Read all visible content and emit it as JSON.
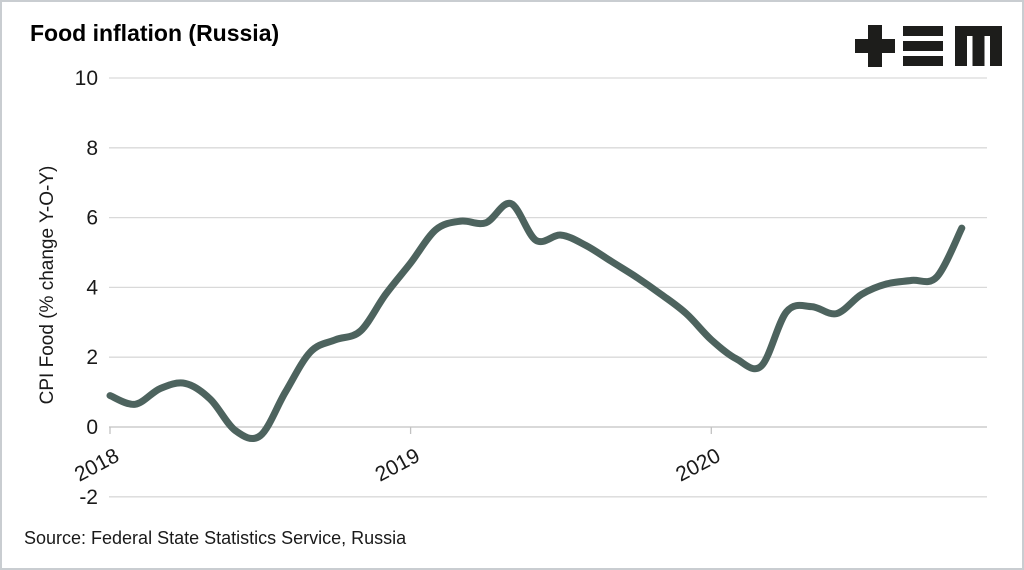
{
  "window": {
    "background_color": "#ffffff",
    "border_color": "#c9cdd1"
  },
  "header": {
    "title": "Food inflation (Russia)"
  },
  "logo": {
    "name": "tem-logo",
    "color": "#1d1d1b"
  },
  "footer": {
    "source_text": "Source: Federal State Statistics Service, Russia"
  },
  "chart_data": {
    "type": "line",
    "title": "Food inflation (Russia)",
    "xlabel": "",
    "ylabel": "CPI Food (% change Y-O-Y)",
    "ylim": [
      -2,
      10
    ],
    "ytick_interval": 2,
    "yticks": [
      10,
      8,
      6,
      4,
      2,
      0,
      -2
    ],
    "year_labels": [
      "2018",
      "2019",
      "2020"
    ],
    "grid": "horizontal",
    "legend": "none",
    "line_color": "#4d635e",
    "gridline_color": "#d9d9d9",
    "axis_color": "#c2c2c2",
    "text_color": "#1a1a1a",
    "x": [
      "2018-01",
      "2018-02",
      "2018-03",
      "2018-04",
      "2018-05",
      "2018-06",
      "2018-07",
      "2018-08",
      "2018-09",
      "2018-10",
      "2018-11",
      "2018-12",
      "2019-01",
      "2019-02",
      "2019-03",
      "2019-04",
      "2019-05",
      "2019-06",
      "2019-07",
      "2019-08",
      "2019-09",
      "2019-10",
      "2019-11",
      "2019-12",
      "2020-01",
      "2020-02",
      "2020-03",
      "2020-04",
      "2020-05",
      "2020-06",
      "2020-07",
      "2020-08",
      "2020-09",
      "2020-10",
      "2020-11"
    ],
    "values": [
      0.9,
      0.65,
      1.1,
      1.25,
      0.8,
      -0.1,
      -0.25,
      1.0,
      2.15,
      2.5,
      2.75,
      3.8,
      4.7,
      5.65,
      5.9,
      5.85,
      6.4,
      5.35,
      5.5,
      5.2,
      4.75,
      4.3,
      3.8,
      3.25,
      2.5,
      1.95,
      1.75,
      3.3,
      3.45,
      3.25,
      3.8,
      4.1,
      4.2,
      4.3,
      5.7
    ]
  }
}
